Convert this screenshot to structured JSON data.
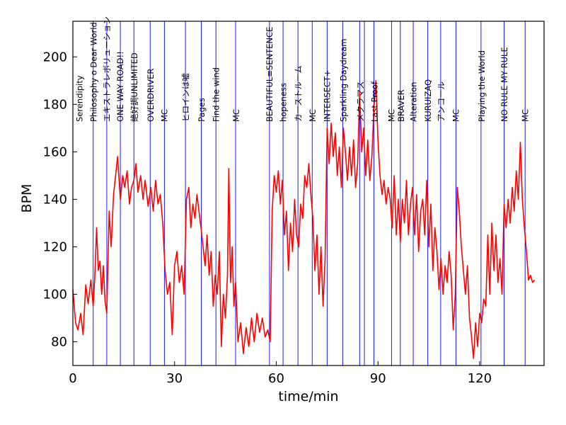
{
  "chart_data": {
    "type": "line",
    "xlabel": "time/min",
    "ylabel": "BPM",
    "xlim": [
      0,
      139
    ],
    "ylim": [
      70,
      215
    ],
    "xticks": [
      0,
      30,
      60,
      90,
      120
    ],
    "yticks": [
      80,
      100,
      120,
      140,
      160,
      180,
      200
    ],
    "grid": false,
    "colors": {
      "line": "#ff0000",
      "divider": "#0000ff",
      "axis": "#000000"
    },
    "series": [
      {
        "points": [
          [
            0,
            102
          ],
          [
            0.8,
            88
          ],
          [
            1.5,
            85
          ],
          [
            2.3,
            92
          ],
          [
            3,
            83
          ],
          [
            3.8,
            104
          ],
          [
            4.5,
            96
          ],
          [
            5.3,
            106
          ],
          [
            6,
            95
          ],
          [
            6.5,
            108
          ],
          [
            7,
            128
          ],
          [
            7.5,
            110
          ],
          [
            8,
            114
          ],
          [
            8.5,
            100
          ],
          [
            9,
            112
          ],
          [
            9.5,
            97
          ],
          [
            10,
            92
          ],
          [
            10.7,
            135
          ],
          [
            11.3,
            120
          ],
          [
            12,
            142
          ],
          [
            12.6,
            150
          ],
          [
            13.2,
            158
          ],
          [
            14,
            140
          ],
          [
            14.7,
            150
          ],
          [
            15.3,
            145
          ],
          [
            16,
            152
          ],
          [
            16.7,
            138
          ],
          [
            17.3,
            145
          ],
          [
            18,
            148
          ],
          [
            18.6,
            155
          ],
          [
            19.2,
            143
          ],
          [
            20,
            150
          ],
          [
            20.7,
            140
          ],
          [
            21.3,
            148
          ],
          [
            22.2,
            137
          ],
          [
            23,
            145
          ],
          [
            23.7,
            135
          ],
          [
            24.4,
            148
          ],
          [
            25.1,
            138
          ],
          [
            25.8,
            142
          ],
          [
            26.5,
            130
          ],
          [
            27.2,
            110
          ],
          [
            27.9,
            100
          ],
          [
            28.6,
            105
          ],
          [
            29.3,
            83
          ],
          [
            30,
            112
          ],
          [
            30.7,
            118
          ],
          [
            31.4,
            105
          ],
          [
            32.1,
            112
          ],
          [
            32.8,
            100
          ],
          [
            33.5,
            140
          ],
          [
            34.2,
            145
          ],
          [
            34.8,
            128
          ],
          [
            35.4,
            138
          ],
          [
            36,
            132
          ],
          [
            36.6,
            142
          ],
          [
            37.2,
            135
          ],
          [
            37.8,
            128
          ],
          [
            38.4,
            120
          ],
          [
            39,
            112
          ],
          [
            39.6,
            125
          ],
          [
            40.2,
            108
          ],
          [
            40.8,
            118
          ],
          [
            41.4,
            95
          ],
          [
            42,
            108
          ],
          [
            42.6,
            100
          ],
          [
            43.2,
            118
          ],
          [
            43.8,
            78
          ],
          [
            44.4,
            100
          ],
          [
            45,
            90
          ],
          [
            45.6,
            108
          ],
          [
            46,
            153
          ],
          [
            46.5,
            105
          ],
          [
            47,
            120
          ],
          [
            47.5,
            95
          ],
          [
            48,
            105
          ],
          [
            48.7,
            80
          ],
          [
            49.5,
            88
          ],
          [
            50.3,
            75
          ],
          [
            51.1,
            86
          ],
          [
            51.9,
            78
          ],
          [
            52.7,
            90
          ],
          [
            53.5,
            80
          ],
          [
            54.3,
            92
          ],
          [
            55.1,
            84
          ],
          [
            55.9,
            90
          ],
          [
            56.7,
            82
          ],
          [
            57.5,
            85
          ],
          [
            58.2,
            80
          ],
          [
            58.8,
            135
          ],
          [
            59.4,
            150
          ],
          [
            60,
            143
          ],
          [
            60.6,
            152
          ],
          [
            61.2,
            138
          ],
          [
            61.8,
            148
          ],
          [
            62.4,
            125
          ],
          [
            63,
            135
          ],
          [
            63.6,
            110
          ],
          [
            64.2,
            130
          ],
          [
            64.8,
            118
          ],
          [
            65.4,
            140
          ],
          [
            66,
            125
          ],
          [
            66.6,
            120
          ],
          [
            67.2,
            138
          ],
          [
            67.8,
            132
          ],
          [
            68.4,
            150
          ],
          [
            69,
            145
          ],
          [
            69.6,
            155
          ],
          [
            70.2,
            142
          ],
          [
            70.8,
            132
          ],
          [
            71.4,
            110
          ],
          [
            72,
            125
          ],
          [
            72.6,
            100
          ],
          [
            73.2,
            120
          ],
          [
            73.8,
            95
          ],
          [
            74.4,
            115
          ],
          [
            75,
            170
          ],
          [
            75.6,
            155
          ],
          [
            76.2,
            172
          ],
          [
            76.8,
            158
          ],
          [
            77.4,
            168
          ],
          [
            78,
            150
          ],
          [
            78.6,
            162
          ],
          [
            79.2,
            145
          ],
          [
            79.8,
            170
          ],
          [
            80.4,
            160
          ],
          [
            81,
            148
          ],
          [
            81.6,
            162
          ],
          [
            82.2,
            150
          ],
          [
            82.8,
            165
          ],
          [
            83.4,
            145
          ],
          [
            84,
            155
          ],
          [
            84.6,
            185
          ],
          [
            85.2,
            160
          ],
          [
            85.8,
            170
          ],
          [
            86.4,
            150
          ],
          [
            87,
            165
          ],
          [
            87.6,
            148
          ],
          [
            88.2,
            158
          ],
          [
            88.8,
            178
          ],
          [
            89.4,
            190
          ],
          [
            90,
            165
          ],
          [
            90.6,
            150
          ],
          [
            91.2,
            142
          ],
          [
            91.8,
            148
          ],
          [
            92.4,
            138
          ],
          [
            93,
            145
          ],
          [
            93.6,
            140
          ],
          [
            94.2,
            128
          ],
          [
            94.8,
            150
          ],
          [
            95.4,
            125
          ],
          [
            96,
            140
          ],
          [
            96.6,
            122
          ],
          [
            97.2,
            140
          ],
          [
            97.8,
            130
          ],
          [
            98.4,
            148
          ],
          [
            99,
            125
          ],
          [
            99.6,
            138
          ],
          [
            100.2,
            145
          ],
          [
            100.8,
            125
          ],
          [
            101.4,
            142
          ],
          [
            102,
            118
          ],
          [
            102.6,
            135
          ],
          [
            103.2,
            140
          ],
          [
            103.8,
            125
          ],
          [
            104.4,
            148
          ],
          [
            105,
            120
          ],
          [
            105.6,
            138
          ],
          [
            106.2,
            110
          ],
          [
            106.8,
            128
          ],
          [
            107.4,
            118
          ],
          [
            108,
            102
          ],
          [
            108.6,
            115
          ],
          [
            109.2,
            100
          ],
          [
            109.8,
            112
          ],
          [
            110.4,
            105
          ],
          [
            111,
            118
          ],
          [
            111.6,
            108
          ],
          [
            112.2,
            85
          ],
          [
            112.8,
            100
          ],
          [
            113.4,
            145
          ],
          [
            114,
            135
          ],
          [
            114.6,
            120
          ],
          [
            115.2,
            110
          ],
          [
            115.8,
            100
          ],
          [
            116.4,
            112
          ],
          [
            117,
            90
          ],
          [
            117.6,
            82
          ],
          [
            118.2,
            73
          ],
          [
            118.8,
            88
          ],
          [
            119.4,
            78
          ],
          [
            120,
            92
          ],
          [
            120.6,
            88
          ],
          [
            121.2,
            98
          ],
          [
            121.8,
            95
          ],
          [
            122.4,
            125
          ],
          [
            123,
            100
          ],
          [
            123.6,
            130
          ],
          [
            124.2,
            110
          ],
          [
            124.8,
            125
          ],
          [
            125.4,
            105
          ],
          [
            126,
            115
          ],
          [
            126.6,
            100
          ],
          [
            127.2,
            138
          ],
          [
            127.8,
            128
          ],
          [
            128.4,
            140
          ],
          [
            129,
            130
          ],
          [
            129.6,
            145
          ],
          [
            130.2,
            135
          ],
          [
            130.8,
            152
          ],
          [
            131.4,
            140
          ],
          [
            132,
            164
          ],
          [
            132.6,
            140
          ],
          [
            133.2,
            128
          ],
          [
            133.8,
            118
          ],
          [
            134.4,
            106
          ],
          [
            135,
            108
          ],
          [
            135.6,
            105
          ],
          [
            136.2,
            106
          ]
        ]
      }
    ],
    "songs": [
      {
        "label": "Serendipity",
        "start": 2
      },
      {
        "label": "Philosophy o Dear World",
        "start": 6.2
      },
      {
        "label": "エキストラレボリューション",
        "start": 10
      },
      {
        "label": "ONE WAY ROAD!!",
        "start": 14
      },
      {
        "label": "絶好調UNLIMITED",
        "start": 18.2
      },
      {
        "label": "OVERDRIVER",
        "start": 23
      },
      {
        "label": "MC",
        "start": 27
      },
      {
        "label": "ヒロインは嘘",
        "start": 33.3
      },
      {
        "label": "Pages",
        "start": 38
      },
      {
        "label": "Find the wind",
        "start": 42.3
      },
      {
        "label": "MC",
        "start": 48.2
      },
      {
        "label": "BEAUTIFUL≡SENTENCE",
        "start": 58
      },
      {
        "label": "hopeness",
        "start": 62.1
      },
      {
        "label": "カーストルーム",
        "start": 66.5
      },
      {
        "label": "MC",
        "start": 70.8
      },
      {
        "label": "INTERSECT+",
        "start": 75
      },
      {
        "label": "Sparkling Daydream",
        "start": 79.8
      },
      {
        "label": "メクラマス",
        "start": 84.8
      },
      {
        "label": "Last Proof",
        "start": 89
      },
      {
        "label": "MC",
        "start": 94
      },
      {
        "label": "BRAVER",
        "start": 96.8
      },
      {
        "label": "Alteration",
        "start": 100.5
      },
      {
        "label": "KURUIZAQ",
        "start": 104.8
      },
      {
        "label": "アンコール",
        "start": 108.6
      },
      {
        "label": "MC",
        "start": 113
      },
      {
        "label": "Playing the World",
        "start": 120.6
      },
      {
        "label": "NO RULE MY RULE",
        "start": 127.3
      },
      {
        "label": "MC",
        "start": 133.5
      }
    ],
    "dividers": [
      6,
      10,
      14,
      18,
      22.8,
      27,
      33.2,
      37.9,
      42.2,
      48,
      58,
      62,
      66.4,
      70.6,
      75,
      79.6,
      84.6,
      86,
      88.8,
      94,
      96.6,
      100.4,
      104.7,
      108.5,
      113,
      120.4,
      127.2,
      133.4
    ]
  }
}
